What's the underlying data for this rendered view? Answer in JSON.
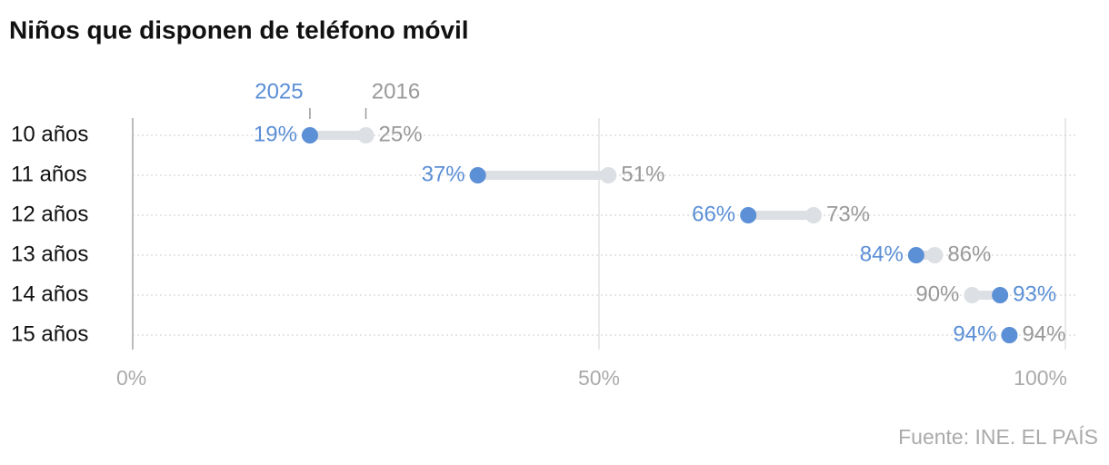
{
  "chart_data": {
    "type": "dumbbell",
    "title": "Niños que disponen de teléfono móvil",
    "categories": [
      "10 años",
      "11 años",
      "12 años",
      "13 años",
      "14 años",
      "15 años"
    ],
    "series": [
      {
        "name": "2025",
        "color": "#5b8fd6",
        "values": [
          19,
          37,
          66,
          84,
          93,
          94
        ],
        "value_labels": [
          "19%",
          "37%",
          "66%",
          "84%",
          "93%",
          "94%"
        ]
      },
      {
        "name": "2016",
        "color": "#dcdfe3",
        "values": [
          25,
          51,
          73,
          86,
          90,
          94
        ],
        "value_labels": [
          "25%",
          "51%",
          "73%",
          "86%",
          "90%",
          "94%"
        ]
      }
    ],
    "xlim": [
      0,
      100
    ],
    "xticks": [
      {
        "value": 0,
        "label": "0%"
      },
      {
        "value": 50,
        "label": "50%"
      },
      {
        "value": 100,
        "label": "100%"
      }
    ],
    "grid": true,
    "source": "Fuente: INE. EL PAÍS"
  }
}
